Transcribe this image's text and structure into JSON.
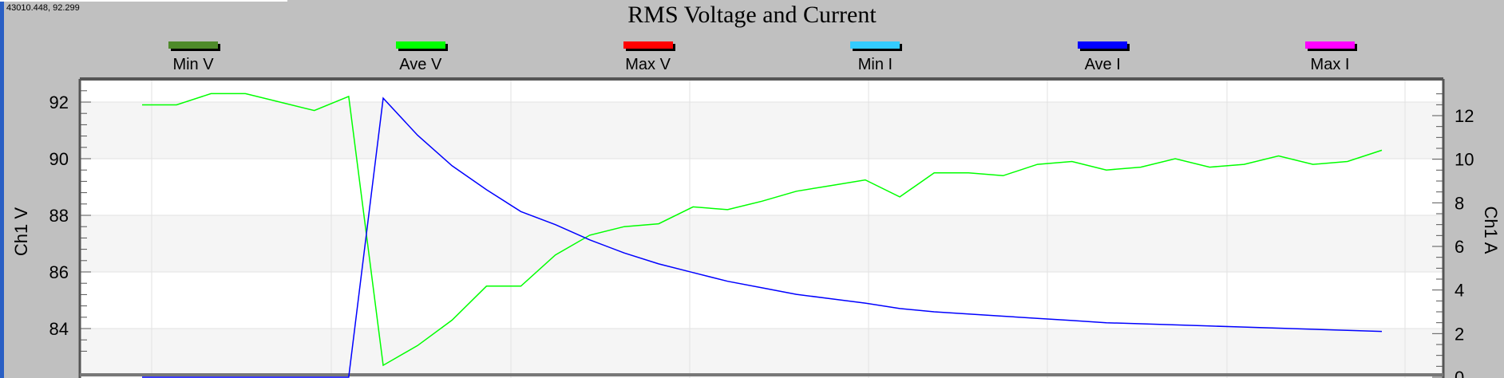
{
  "cursor_readout": "43010.448, 92.299",
  "chart_data": {
    "type": "line",
    "title": "RMS Voltage and Current",
    "legend_placement": "top",
    "legend": [
      {
        "name": "Min V",
        "color": "#4e8a2a"
      },
      {
        "name": "Ave V",
        "color": "#00ff00"
      },
      {
        "name": "Max V",
        "color": "#ff0000"
      },
      {
        "name": "Min I",
        "color": "#33ccff"
      },
      {
        "name": "Ave I",
        "color": "#0000ff"
      },
      {
        "name": "Max I",
        "color": "#ff00ff"
      }
    ],
    "ylabel_left": "Ch1 V",
    "ylabel_right": "Ch1 A",
    "y_left_range": [
      82.8,
      92.8
    ],
    "y_right_range": [
      0,
      13
    ],
    "y_left_ticks": [
      "92",
      "90",
      "88",
      "86",
      "84"
    ],
    "y_left_tick_values": [
      92,
      90,
      88,
      86,
      84
    ],
    "y_right_ticks": [
      "12",
      "10",
      "8",
      "6",
      "4",
      "2",
      "0"
    ],
    "y_right_tick_values": [
      12,
      10,
      8,
      6,
      4,
      2,
      0
    ],
    "x_range": [
      0,
      36.4
    ],
    "grid": true,
    "series": [
      {
        "name": "Ave V",
        "color": "#00ff00",
        "axis": "left",
        "x": [
          0,
          1,
          2,
          3,
          4,
          5,
          6,
          7,
          8,
          9,
          10,
          11,
          12,
          13,
          14,
          15,
          16,
          17,
          18,
          19,
          20,
          21,
          22,
          23,
          24,
          25,
          26,
          27,
          28,
          29,
          30,
          31,
          32,
          33,
          34,
          35,
          36
        ],
        "values": [
          91.9,
          91.9,
          92.3,
          92.3,
          92.0,
          91.7,
          92.2,
          82.7,
          83.4,
          84.3,
          85.5,
          85.5,
          86.6,
          87.3,
          87.6,
          87.7,
          88.3,
          88.2,
          88.5,
          88.85,
          89.05,
          89.25,
          88.65,
          89.5,
          89.5,
          89.4,
          89.8,
          89.9,
          89.6,
          89.7,
          90.0,
          89.7,
          89.8,
          90.1,
          89.8,
          89.9,
          90.3
        ]
      },
      {
        "name": "Ave I",
        "color": "#0000ff",
        "axis": "right",
        "x": [
          0,
          1,
          2,
          3,
          4,
          5,
          6,
          7,
          8,
          9,
          10,
          11,
          12,
          13,
          14,
          15,
          16,
          17,
          18,
          19,
          20,
          21,
          22,
          23,
          24,
          25,
          26,
          27,
          28,
          29,
          30,
          31,
          32,
          33,
          34,
          35,
          36
        ],
        "values": [
          0,
          0,
          0,
          0,
          0,
          0,
          0,
          12.8,
          11.1,
          9.7,
          8.6,
          7.6,
          7.0,
          6.3,
          5.7,
          5.2,
          4.8,
          4.4,
          4.1,
          3.8,
          3.6,
          3.4,
          3.15,
          3.0,
          2.9,
          2.8,
          2.7,
          2.6,
          2.5,
          2.45,
          2.4,
          2.35,
          2.3,
          2.25,
          2.2,
          2.15,
          2.1
        ]
      }
    ]
  }
}
